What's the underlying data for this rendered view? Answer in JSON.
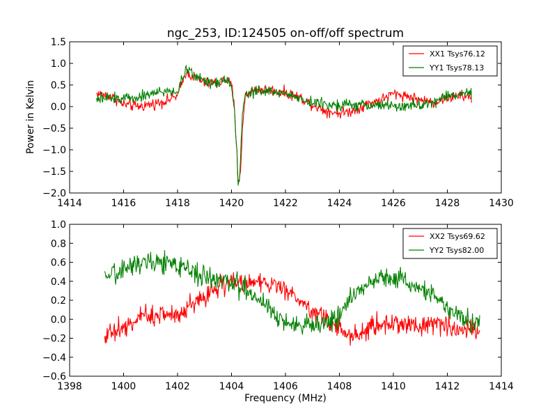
{
  "chart_data": [
    {
      "type": "line",
      "title": "ngc_253, ID:124505 on-off/off spectrum",
      "xlabel": "",
      "ylabel": "Power in Kelvin",
      "xlim": [
        1414,
        1430
      ],
      "ylim": [
        -2.0,
        1.5
      ],
      "xticks": [
        "1414",
        "1416",
        "1418",
        "1420",
        "1422",
        "1424",
        "1426",
        "1428",
        "1430"
      ],
      "yticks": [
        "1.5",
        "1.0",
        "0.5",
        "0.0",
        "−0.5",
        "−1.0",
        "−1.5",
        "−2.0"
      ],
      "grid": false,
      "legend_position": "top-right",
      "series": [
        {
          "name": "XX1 Tsys76.12",
          "color": "#ff0000",
          "noise": 0.09,
          "x": [
            1415,
            1415.5,
            1416,
            1416.5,
            1417,
            1417.5,
            1418,
            1418.15,
            1418.3,
            1418.7,
            1419,
            1419.5,
            1419.8,
            1420,
            1420.1,
            1420.2,
            1420.25,
            1420.3,
            1420.35,
            1420.4,
            1420.5,
            1420.7,
            1421,
            1421.5,
            1422,
            1422.5,
            1423,
            1423.5,
            1424,
            1424.5,
            1425,
            1425.5,
            1426,
            1426.5,
            1427,
            1427.5,
            1428,
            1428.5,
            1428.9
          ],
          "y": [
            0.3,
            0.25,
            0.05,
            0.0,
            0.05,
            0.12,
            0.25,
            0.5,
            0.8,
            0.65,
            0.55,
            0.55,
            0.62,
            0.5,
            0.0,
            -1.0,
            -1.8,
            -1.6,
            -1.4,
            -0.6,
            0.25,
            0.35,
            0.4,
            0.38,
            0.32,
            0.22,
            0.05,
            -0.1,
            -0.15,
            -0.1,
            0.05,
            0.15,
            0.3,
            0.25,
            0.15,
            0.1,
            0.2,
            0.25,
            0.2
          ]
        },
        {
          "name": "YY1 Tsys78.13",
          "color": "#008000",
          "noise": 0.09,
          "x": [
            1415,
            1415.5,
            1416,
            1416.5,
            1417,
            1417.5,
            1418,
            1418.15,
            1418.3,
            1418.7,
            1419,
            1419.5,
            1419.8,
            1420,
            1420.1,
            1420.2,
            1420.25,
            1420.3,
            1420.35,
            1420.4,
            1420.5,
            1420.7,
            1421,
            1421.5,
            1422,
            1422.5,
            1423,
            1423.5,
            1424,
            1424.5,
            1425,
            1425.5,
            1426,
            1426.5,
            1427,
            1427.5,
            1428,
            1428.5,
            1428.9
          ],
          "y": [
            0.15,
            0.2,
            0.2,
            0.22,
            0.3,
            0.35,
            0.35,
            0.6,
            0.85,
            0.7,
            0.6,
            0.55,
            0.65,
            0.5,
            0.0,
            -1.1,
            -1.8,
            -1.6,
            -1.0,
            -0.2,
            0.3,
            0.35,
            0.35,
            0.35,
            0.3,
            0.2,
            0.1,
            0.05,
            0.05,
            0.05,
            0.0,
            0.05,
            0.0,
            0.0,
            0.05,
            0.1,
            0.25,
            0.3,
            0.3
          ]
        }
      ]
    },
    {
      "type": "line",
      "title": "",
      "xlabel": "Frequency (MHz)",
      "ylabel": "",
      "xlim": [
        1398,
        1414
      ],
      "ylim": [
        -0.6,
        1.0
      ],
      "xticks": [
        "1398",
        "1400",
        "1402",
        "1404",
        "1406",
        "1408",
        "1410",
        "1412",
        "1414"
      ],
      "yticks": [
        "1.0",
        "0.8",
        "0.6",
        "0.4",
        "0.2",
        "0.0",
        "−0.2",
        "−0.4",
        "−0.6"
      ],
      "grid": false,
      "legend_position": "top-right",
      "series": [
        {
          "name": "XX2 Tsys69.62",
          "color": "#ff0000",
          "noise": 0.08,
          "x": [
            1399.3,
            1400,
            1400.5,
            1401,
            1401.5,
            1402,
            1402.5,
            1403,
            1403.5,
            1404,
            1404.5,
            1405,
            1405.5,
            1406,
            1406.5,
            1407,
            1407.5,
            1408,
            1408.5,
            1409,
            1409.5,
            1410,
            1410.5,
            1411,
            1411.5,
            1412,
            1412.5,
            1413.2
          ],
          "y": [
            -0.15,
            -0.1,
            0.0,
            0.05,
            0.05,
            0.05,
            0.15,
            0.25,
            0.35,
            0.4,
            0.38,
            0.42,
            0.35,
            0.3,
            0.2,
            0.1,
            0.0,
            -0.1,
            -0.18,
            -0.12,
            -0.05,
            -0.05,
            -0.05,
            -0.05,
            -0.05,
            -0.08,
            -0.1,
            -0.1
          ]
        },
        {
          "name": "YY2 Tsys82.00",
          "color": "#008000",
          "noise": 0.08,
          "x": [
            1399.3,
            1399.8,
            1400.5,
            1401,
            1401.5,
            1402,
            1402.5,
            1403,
            1403.5,
            1404,
            1404.5,
            1405,
            1405.5,
            1406,
            1406.5,
            1407,
            1407.5,
            1408,
            1408.5,
            1409,
            1409.5,
            1410,
            1410.5,
            1411,
            1411.5,
            1412,
            1412.5,
            1413.2
          ],
          "y": [
            0.4,
            0.5,
            0.6,
            0.62,
            0.6,
            0.55,
            0.52,
            0.45,
            0.42,
            0.38,
            0.32,
            0.22,
            0.1,
            -0.05,
            -0.08,
            -0.05,
            -0.05,
            0.05,
            0.25,
            0.35,
            0.45,
            0.45,
            0.4,
            0.32,
            0.25,
            0.12,
            0.02,
            -0.05
          ]
        }
      ]
    }
  ]
}
